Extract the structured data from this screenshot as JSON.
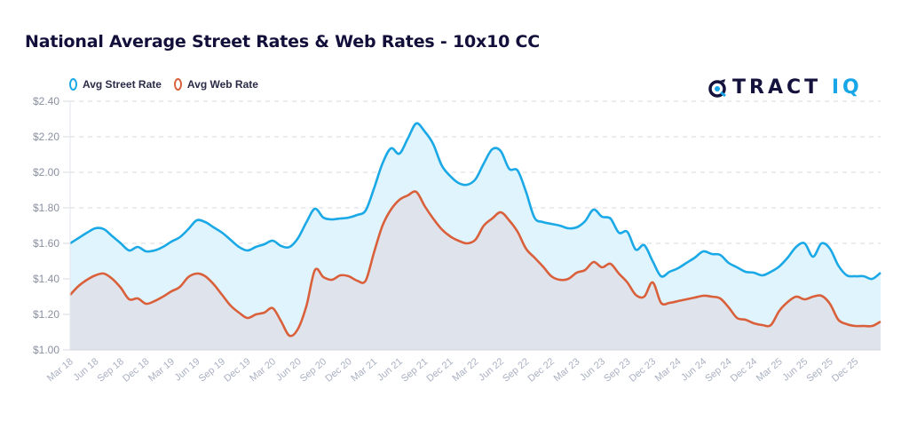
{
  "title": "National Average Street Rates & Web Rates - 10x10 CC",
  "logo": {
    "text_main": "TRACT",
    "text_accent": "IQ",
    "icon": "tractiq-logo-icon"
  },
  "colors": {
    "street": "#1aa9e6",
    "web": "#d9603b",
    "street_fill": "#e0f4fd",
    "web_fill": "#dfe4ec",
    "grid": "#d6d9e2",
    "title": "#12103a",
    "logo_accent": "#19a6e8"
  },
  "chart_data": {
    "type": "area",
    "title": "National Average Street Rates & Web Rates - 10x10 CC",
    "xlabel": "",
    "ylabel": "",
    "ylim": [
      1.0,
      2.4
    ],
    "yticks": [
      1.0,
      1.2,
      1.4,
      1.6,
      1.8,
      2.0,
      2.2,
      2.4
    ],
    "ytick_labels": [
      "$1.00",
      "$1.20",
      "$1.40",
      "$1.60",
      "$1.80",
      "$2.00",
      "$2.20",
      "$2.40"
    ],
    "grid": true,
    "legend_position": "top-left",
    "x_start": "Mar 18",
    "x_end": "Mar 26",
    "x_frequency": "monthly",
    "xtick_labels": [
      "Mar 18",
      "Jun 18",
      "Sep 18",
      "Dec 18",
      "Mar 19",
      "Jun 19",
      "Sep 19",
      "Dec 19",
      "Mar 20",
      "Jun 20",
      "Sep 20",
      "Dec 20",
      "Mar 21",
      "Jun 21",
      "Sep 21",
      "Dec 21",
      "Mar 22",
      "Jun 22",
      "Sep 22",
      "Dec 22",
      "Mar 23",
      "Jun 23",
      "Sep 23",
      "Dec 23",
      "Mar 24",
      "Jun 24",
      "Sep 24",
      "Dec 24",
      "Mar 25",
      "Jun 25",
      "Sep 25",
      "Dec 25"
    ],
    "series": [
      {
        "name": "Avg Street Rate",
        "color": "#1aa9e6",
        "values": [
          1.6,
          1.63,
          1.66,
          1.685,
          1.68,
          1.64,
          1.6,
          1.56,
          1.58,
          1.555,
          1.56,
          1.58,
          1.61,
          1.635,
          1.68,
          1.73,
          1.72,
          1.69,
          1.66,
          1.62,
          1.58,
          1.56,
          1.58,
          1.595,
          1.615,
          1.585,
          1.58,
          1.63,
          1.72,
          1.795,
          1.745,
          1.735,
          1.74,
          1.745,
          1.76,
          1.785,
          1.91,
          2.05,
          2.135,
          2.105,
          2.19,
          2.275,
          2.23,
          2.16,
          2.04,
          1.98,
          1.94,
          1.93,
          1.96,
          2.05,
          2.13,
          2.12,
          2.02,
          2.01,
          1.89,
          1.745,
          1.72,
          1.71,
          1.7,
          1.685,
          1.69,
          1.725,
          1.79,
          1.75,
          1.74,
          1.66,
          1.665,
          1.565,
          1.59,
          1.5,
          1.415,
          1.44,
          1.46,
          1.49,
          1.52,
          1.555,
          1.54,
          1.535,
          1.49,
          1.465,
          1.44,
          1.435,
          1.42,
          1.44,
          1.47,
          1.52,
          1.58,
          1.6,
          1.525,
          1.6,
          1.57,
          1.475,
          1.42,
          1.415,
          1.415,
          1.4,
          1.435
        ]
      },
      {
        "name": "Avg Web Rate",
        "color": "#d9603b",
        "values": [
          1.31,
          1.36,
          1.395,
          1.42,
          1.43,
          1.4,
          1.35,
          1.285,
          1.29,
          1.26,
          1.275,
          1.3,
          1.33,
          1.355,
          1.41,
          1.43,
          1.415,
          1.37,
          1.31,
          1.25,
          1.21,
          1.18,
          1.2,
          1.21,
          1.235,
          1.16,
          1.08,
          1.12,
          1.25,
          1.45,
          1.41,
          1.395,
          1.42,
          1.415,
          1.39,
          1.39,
          1.55,
          1.7,
          1.79,
          1.845,
          1.87,
          1.89,
          1.81,
          1.74,
          1.68,
          1.64,
          1.615,
          1.6,
          1.62,
          1.7,
          1.74,
          1.775,
          1.73,
          1.665,
          1.57,
          1.52,
          1.47,
          1.415,
          1.395,
          1.4,
          1.435,
          1.45,
          1.495,
          1.465,
          1.485,
          1.43,
          1.38,
          1.31,
          1.3,
          1.38,
          1.265,
          1.265,
          1.275,
          1.285,
          1.295,
          1.305,
          1.3,
          1.29,
          1.24,
          1.18,
          1.17,
          1.15,
          1.14,
          1.14,
          1.22,
          1.27,
          1.3,
          1.285,
          1.3,
          1.305,
          1.26,
          1.17,
          1.145,
          1.135,
          1.135,
          1.135,
          1.16
        ]
      }
    ]
  }
}
